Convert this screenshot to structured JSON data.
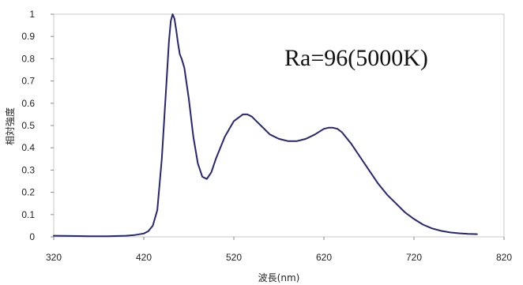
{
  "chart_data": {
    "type": "line",
    "title": "",
    "xlabel": "波長(nm)",
    "ylabel": "相対強度",
    "xlim": [
      320,
      820
    ],
    "ylim": [
      0,
      1
    ],
    "xticks": [
      "320",
      "420",
      "520",
      "620",
      "720",
      "820"
    ],
    "yticks": [
      "0",
      "0.1",
      "0.2",
      "0.3",
      "0.4",
      "0.5",
      "0.6",
      "0.7",
      "0.8",
      "0.9",
      "1"
    ],
    "grid": false,
    "annotation": "Ra=96(5000K)",
    "line_color": "#262673",
    "series": [
      {
        "x": [
          320,
          340,
          360,
          380,
          400,
          410,
          420,
          425,
          430,
          435,
          440,
          445,
          448,
          450,
          452,
          454,
          456,
          458,
          460,
          462,
          465,
          470,
          475,
          480,
          485,
          490,
          495,
          500,
          510,
          520,
          530,
          535,
          540,
          545,
          550,
          560,
          570,
          580,
          590,
          600,
          610,
          620,
          625,
          630,
          635,
          640,
          650,
          660,
          670,
          680,
          690,
          700,
          710,
          720,
          730,
          740,
          750,
          760,
          770,
          780,
          790
        ],
        "y": [
          0.005,
          0.004,
          0.003,
          0.003,
          0.005,
          0.008,
          0.015,
          0.025,
          0.05,
          0.12,
          0.35,
          0.68,
          0.88,
          0.97,
          1.0,
          0.98,
          0.93,
          0.87,
          0.82,
          0.8,
          0.76,
          0.62,
          0.45,
          0.33,
          0.27,
          0.26,
          0.29,
          0.35,
          0.45,
          0.52,
          0.55,
          0.55,
          0.54,
          0.52,
          0.5,
          0.46,
          0.44,
          0.43,
          0.43,
          0.44,
          0.46,
          0.485,
          0.49,
          0.49,
          0.485,
          0.47,
          0.42,
          0.36,
          0.3,
          0.24,
          0.19,
          0.15,
          0.11,
          0.08,
          0.055,
          0.038,
          0.027,
          0.02,
          0.016,
          0.013,
          0.012
        ]
      }
    ]
  }
}
